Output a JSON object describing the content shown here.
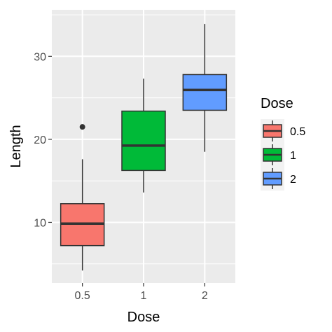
{
  "chart_data": {
    "type": "box",
    "title": "",
    "xlabel": "Dose",
    "ylabel": "Length",
    "categories": [
      "0.5",
      "1",
      "2"
    ],
    "y_ticks": [
      10,
      20,
      30
    ],
    "ylim": [
      2.7,
      35.6
    ],
    "grid": true,
    "background": "#EBEBEB",
    "legend": {
      "title": "Dose",
      "position": "right",
      "entries": [
        "0.5",
        "1",
        "2"
      ]
    },
    "colors": [
      "#F8766D",
      "#00BA38",
      "#619CFF"
    ],
    "boxes": [
      {
        "category": "0.5",
        "min": 4.2,
        "q1": 7.2,
        "median": 9.85,
        "q3": 12.25,
        "max": 17.6,
        "outliers": [
          21.5
        ]
      },
      {
        "category": "1",
        "min": 13.6,
        "q1": 16.25,
        "median": 19.25,
        "q3": 23.4,
        "max": 27.3,
        "outliers": []
      },
      {
        "category": "2",
        "min": 18.5,
        "q1": 23.5,
        "median": 25.95,
        "q3": 27.8,
        "max": 33.9,
        "outliers": []
      }
    ]
  }
}
